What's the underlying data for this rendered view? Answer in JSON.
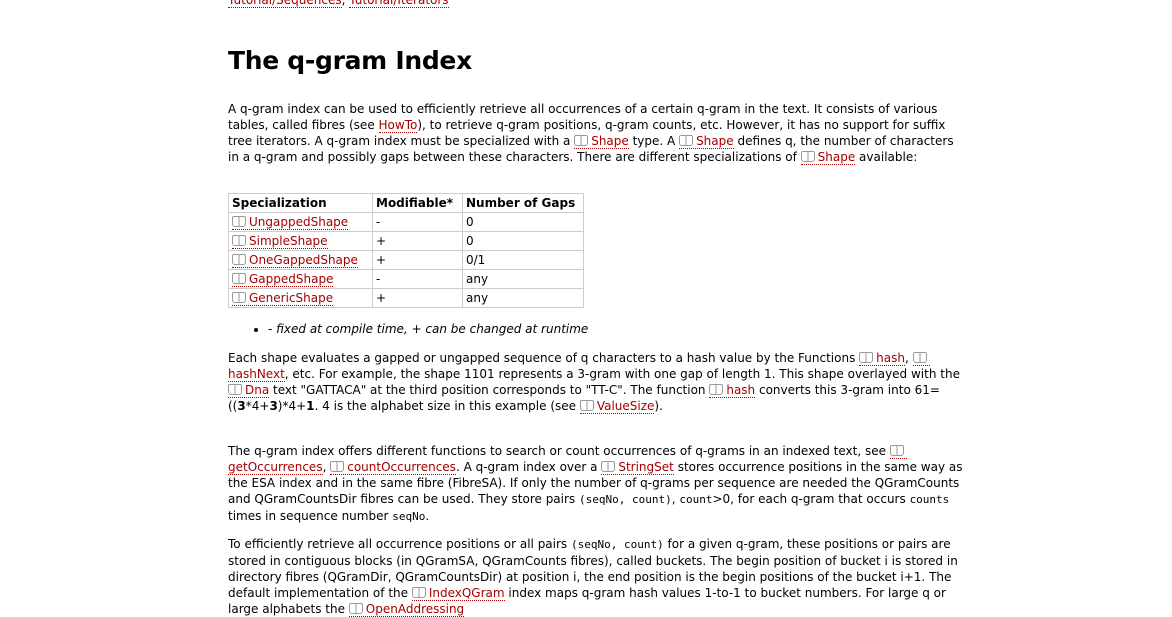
{
  "breadcrumb": [
    "Tutorial/Sequences",
    ", ",
    "Tutorial/Iterators"
  ],
  "heading": "The q-gram Index",
  "paragraphs": [
    [
      "A q-gram index can be used to efficiently retrieve all occurrences of a certain q-gram in the text. It consists of various tables, called fibres (see ",
      "HowTo",
      "), to retrieve q-gram positions, q-gram counts, etc. However, it has no support for suffix tree iterators. A q-gram index must be specialized with a ",
      "Shape",
      " type. A ",
      "Shape",
      " defines q, the number of characters in a q-gram and possibly gaps between these characters. There are different specializations of ",
      "Shape",
      " available:"
    ],
    [
      "Each shape evaluates a gapped or ungapped sequence of q characters to a hash value by the Functions ",
      "hash",
      ", ",
      "hashNext",
      ", etc. For example, the shape 1101 represents a 3-gram with one gap of length 1. This shape overlayed with the ",
      "Dna",
      " text \"GATTACA\" at the third position corresponds to \"TT-C\". The function ",
      "hash",
      " converts this 3-gram into 61=((",
      "3",
      "*4+",
      "3",
      ")*4+",
      "1",
      ". 4 is the alphabet size in this example (see ",
      "ValueSize",
      ")."
    ],
    [
      "The q-gram index offers different functions to search or count occurrences of q-grams in an indexed text, see ",
      "getOccurrences",
      ", ",
      "countOccurrences",
      ". A q-gram index over a ",
      "StringSet",
      " stores occurrence positions in the same way as the ESA index and in the same fibre (FibreSA). If only the number of q-grams per sequence are needed the QGramCounts and QGramCountsDir fibres can be used. They store pairs ",
      "(seqNo, count)",
      ", ",
      "count",
      ">0, for each q-gram that occurs ",
      "counts",
      " times in sequence number ",
      "seqNo",
      "."
    ],
    [
      "To efficiently retrieve all occurrence positions or all pairs ",
      "(seqNo, count)",
      " for a given q-gram, these positions or pairs are stored in contiguous blocks (in QGramSA, QGramCounts fibres), called buckets. The begin position of bucket i is stored in directory fibres (QGramDir, QGramCountsDir) at position i, the end position is the begin positions of the bucket i+1. The default implementation of the ",
      "IndexQGram",
      " index maps q-gram hash values 1-to-1 to bucket numbers. For large q or large alphabets the ",
      "OpenAddressing"
    ]
  ],
  "table": {
    "header": [
      "Specialization",
      "Modifiable*",
      "Number of Gaps"
    ],
    "rows": [
      [
        "UngappedShape",
        "-",
        "0"
      ],
      [
        "SimpleShape",
        "+",
        "0"
      ],
      [
        "OneGappedShape",
        "+",
        "0/1"
      ],
      [
        "GappedShape",
        "-",
        "any"
      ],
      [
        "GenericShape",
        "+",
        "any"
      ]
    ]
  },
  "footnote": "- fixed at compile time, + can be changed at runtime"
}
